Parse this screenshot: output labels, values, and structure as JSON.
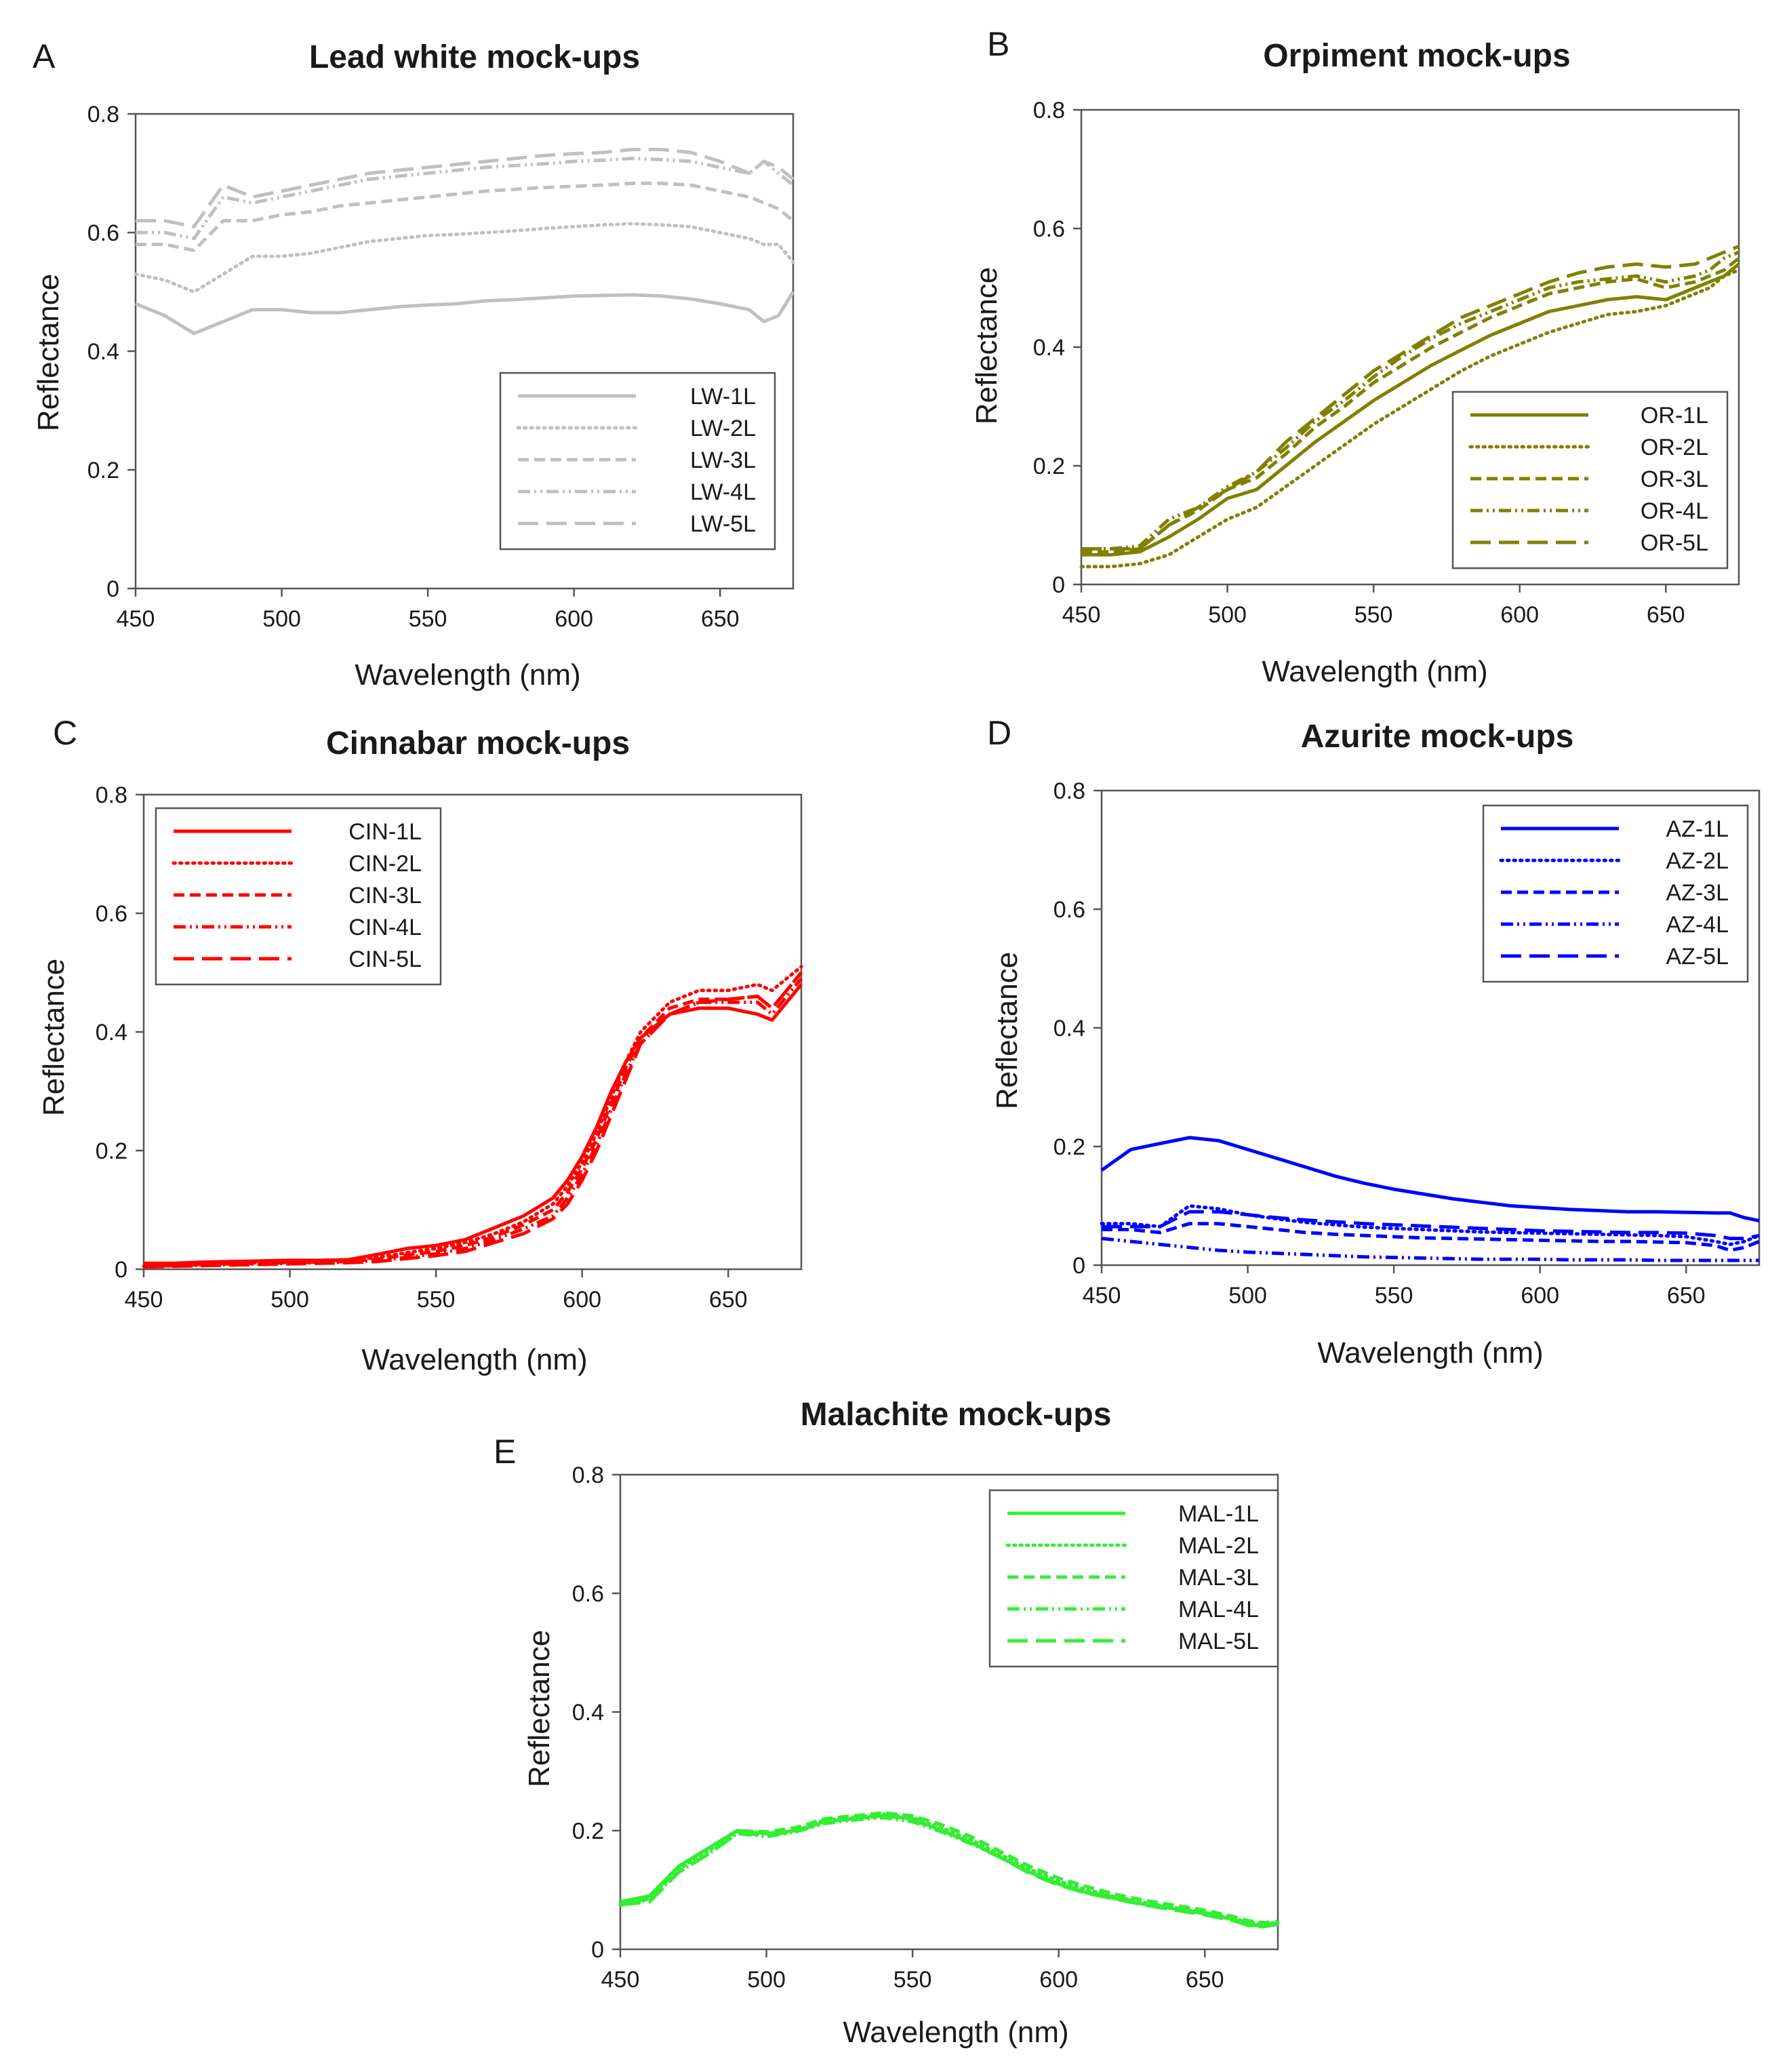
{
  "figure": {
    "background": "#ffffff",
    "axis_color": "#555555",
    "text_color": "#1a1a1a"
  },
  "chart_data": [
    {
      "panel": "A",
      "type": "line",
      "title": "Lead white mock-ups",
      "xlabel": "Wavelength (nm)",
      "ylabel": "Reflectance",
      "xlim": [
        450,
        675
      ],
      "ylim": [
        0,
        0.8
      ],
      "xticks": [
        450,
        500,
        550,
        600,
        650
      ],
      "yticks": [
        0,
        0.2,
        0.4,
        0.6,
        0.8
      ],
      "ytick_labels": [
        "0",
        "0.2",
        "0.4",
        "0.6",
        "0.8"
      ],
      "legend_position": "bottom-right",
      "color": "#c0c0c0",
      "x": [
        450,
        460,
        470,
        480,
        490,
        500,
        510,
        520,
        530,
        540,
        550,
        560,
        570,
        580,
        590,
        600,
        610,
        620,
        630,
        640,
        650,
        660,
        665,
        670,
        675
      ],
      "series": [
        {
          "name": "LW-1L",
          "style": "solid",
          "values": [
            0.48,
            0.46,
            0.43,
            0.45,
            0.47,
            0.47,
            0.465,
            0.465,
            0.47,
            0.475,
            0.478,
            0.48,
            0.485,
            0.487,
            0.49,
            0.493,
            0.494,
            0.495,
            0.493,
            0.488,
            0.48,
            0.47,
            0.45,
            0.46,
            0.5
          ]
        },
        {
          "name": "LW-2L",
          "style": "dotted",
          "values": [
            0.53,
            0.52,
            0.5,
            0.53,
            0.56,
            0.56,
            0.565,
            0.575,
            0.585,
            0.59,
            0.595,
            0.597,
            0.6,
            0.603,
            0.607,
            0.61,
            0.613,
            0.615,
            0.613,
            0.61,
            0.6,
            0.59,
            0.58,
            0.58,
            0.55
          ]
        },
        {
          "name": "LW-3L",
          "style": "dashed",
          "values": [
            0.58,
            0.58,
            0.57,
            0.62,
            0.62,
            0.63,
            0.635,
            0.645,
            0.65,
            0.655,
            0.66,
            0.665,
            0.67,
            0.673,
            0.676,
            0.678,
            0.68,
            0.683,
            0.683,
            0.68,
            0.67,
            0.66,
            0.65,
            0.64,
            0.62
          ]
        },
        {
          "name": "LW-4L",
          "style": "dashdotdot",
          "values": [
            0.6,
            0.6,
            0.59,
            0.66,
            0.65,
            0.66,
            0.67,
            0.68,
            0.69,
            0.695,
            0.7,
            0.705,
            0.71,
            0.713,
            0.716,
            0.72,
            0.722,
            0.725,
            0.723,
            0.72,
            0.71,
            0.7,
            0.72,
            0.7,
            0.68
          ]
        },
        {
          "name": "LW-5L",
          "style": "longdash",
          "values": [
            0.62,
            0.62,
            0.61,
            0.68,
            0.66,
            0.67,
            0.68,
            0.69,
            0.7,
            0.705,
            0.71,
            0.715,
            0.72,
            0.725,
            0.73,
            0.733,
            0.735,
            0.74,
            0.74,
            0.735,
            0.72,
            0.7,
            0.72,
            0.71,
            0.69
          ]
        }
      ]
    },
    {
      "panel": "B",
      "type": "line",
      "title": "Orpiment mock-ups",
      "xlabel": "Wavelength (nm)",
      "ylabel": "Reflectance",
      "xlim": [
        450,
        675
      ],
      "ylim": [
        0,
        0.8
      ],
      "xticks": [
        450,
        500,
        550,
        600,
        650
      ],
      "yticks": [
        0,
        0.2,
        0.4,
        0.6,
        0.8
      ],
      "ytick_labels": [
        "0",
        "0.2",
        "0.4",
        "0.6",
        "0.8"
      ],
      "legend_position": "bottom-right",
      "color": "#808000",
      "x": [
        450,
        460,
        470,
        480,
        490,
        500,
        510,
        520,
        530,
        540,
        550,
        560,
        570,
        580,
        590,
        600,
        610,
        620,
        630,
        640,
        650,
        660,
        665,
        670,
        675
      ],
      "series": [
        {
          "name": "OR-1L",
          "style": "solid",
          "values": [
            0.05,
            0.05,
            0.055,
            0.08,
            0.11,
            0.145,
            0.16,
            0.2,
            0.24,
            0.275,
            0.31,
            0.34,
            0.37,
            0.395,
            0.42,
            0.44,
            0.46,
            0.47,
            0.48,
            0.485,
            0.48,
            0.5,
            0.51,
            0.52,
            0.54
          ]
        },
        {
          "name": "OR-2L",
          "style": "dotted",
          "values": [
            0.03,
            0.03,
            0.035,
            0.05,
            0.08,
            0.11,
            0.13,
            0.165,
            0.2,
            0.235,
            0.27,
            0.3,
            0.33,
            0.36,
            0.385,
            0.405,
            0.425,
            0.44,
            0.455,
            0.46,
            0.47,
            0.49,
            0.5,
            0.52,
            0.53
          ]
        },
        {
          "name": "OR-3L",
          "style": "dashed",
          "values": [
            0.055,
            0.055,
            0.06,
            0.1,
            0.125,
            0.16,
            0.18,
            0.22,
            0.265,
            0.3,
            0.34,
            0.37,
            0.4,
            0.425,
            0.45,
            0.47,
            0.49,
            0.5,
            0.51,
            0.515,
            0.5,
            0.51,
            0.52,
            0.53,
            0.55
          ]
        },
        {
          "name": "OR-4L",
          "style": "dashdotdot",
          "values": [
            0.06,
            0.06,
            0.065,
            0.11,
            0.13,
            0.165,
            0.19,
            0.23,
            0.275,
            0.31,
            0.35,
            0.385,
            0.415,
            0.44,
            0.46,
            0.48,
            0.5,
            0.51,
            0.515,
            0.52,
            0.51,
            0.52,
            0.53,
            0.55,
            0.56
          ]
        },
        {
          "name": "OR-5L",
          "style": "longdash",
          "values": [
            0.06,
            0.06,
            0.06,
            0.1,
            0.13,
            0.16,
            0.19,
            0.24,
            0.28,
            0.32,
            0.36,
            0.39,
            0.42,
            0.45,
            0.47,
            0.49,
            0.51,
            0.525,
            0.535,
            0.54,
            0.535,
            0.54,
            0.55,
            0.56,
            0.57
          ]
        }
      ]
    },
    {
      "panel": "C",
      "type": "line",
      "title": "Cinnabar mock-ups",
      "xlabel": "Wavelength (nm)",
      "ylabel": "Reflectance",
      "xlim": [
        450,
        675
      ],
      "ylim": [
        0,
        0.8
      ],
      "xticks": [
        450,
        500,
        550,
        600,
        650
      ],
      "yticks": [
        0,
        0.2,
        0.4,
        0.6,
        0.8
      ],
      "ytick_labels": [
        "0",
        "0.2",
        "0.4",
        "0.6",
        "0.8"
      ],
      "legend_position": "top-left",
      "color": "#ff0000",
      "x": [
        450,
        460,
        470,
        480,
        490,
        500,
        510,
        520,
        530,
        540,
        550,
        560,
        570,
        580,
        590,
        595,
        600,
        605,
        610,
        615,
        620,
        630,
        640,
        650,
        660,
        665,
        670,
        675
      ],
      "series": [
        {
          "name": "CIN-1L",
          "style": "solid",
          "values": [
            0.01,
            0.01,
            0.012,
            0.013,
            0.014,
            0.015,
            0.015,
            0.016,
            0.025,
            0.035,
            0.04,
            0.05,
            0.07,
            0.09,
            0.12,
            0.15,
            0.19,
            0.24,
            0.3,
            0.35,
            0.39,
            0.43,
            0.44,
            0.44,
            0.43,
            0.42,
            0.45,
            0.48
          ]
        },
        {
          "name": "CIN-2L",
          "style": "dotted",
          "values": [
            0.005,
            0.006,
            0.008,
            0.01,
            0.011,
            0.012,
            0.013,
            0.015,
            0.02,
            0.028,
            0.035,
            0.045,
            0.06,
            0.08,
            0.11,
            0.14,
            0.18,
            0.23,
            0.29,
            0.35,
            0.4,
            0.45,
            0.47,
            0.47,
            0.48,
            0.47,
            0.49,
            0.51
          ]
        },
        {
          "name": "CIN-3L",
          "style": "dashed",
          "values": [
            0.005,
            0.006,
            0.008,
            0.009,
            0.01,
            0.011,
            0.012,
            0.013,
            0.017,
            0.024,
            0.03,
            0.04,
            0.055,
            0.075,
            0.1,
            0.13,
            0.17,
            0.22,
            0.28,
            0.34,
            0.39,
            0.44,
            0.455,
            0.455,
            0.46,
            0.44,
            0.47,
            0.5
          ]
        },
        {
          "name": "CIN-4L",
          "style": "dashdotdot",
          "values": [
            0.005,
            0.006,
            0.007,
            0.008,
            0.009,
            0.01,
            0.011,
            0.012,
            0.015,
            0.02,
            0.026,
            0.035,
            0.05,
            0.068,
            0.09,
            0.12,
            0.16,
            0.21,
            0.27,
            0.33,
            0.38,
            0.43,
            0.45,
            0.45,
            0.45,
            0.43,
            0.46,
            0.49
          ]
        },
        {
          "name": "CIN-5L",
          "style": "longdash",
          "values": [
            0.004,
            0.005,
            0.006,
            0.007,
            0.008,
            0.009,
            0.01,
            0.011,
            0.013,
            0.018,
            0.023,
            0.03,
            0.045,
            0.06,
            0.085,
            0.11,
            0.15,
            0.2,
            0.26,
            0.32,
            0.38,
            0.43,
            0.45,
            0.455,
            0.46,
            0.44,
            0.47,
            0.5
          ]
        }
      ]
    },
    {
      "panel": "D",
      "type": "line",
      "title": "Azurite mock-ups",
      "xlabel": "Wavelength (nm)",
      "ylabel": "Reflectance",
      "xlim": [
        450,
        675
      ],
      "ylim": [
        0,
        0.8
      ],
      "xticks": [
        450,
        500,
        550,
        600,
        650
      ],
      "yticks": [
        0,
        0.2,
        0.4,
        0.6,
        0.8
      ],
      "ytick_labels": [
        "0",
        "0.2",
        "0.4",
        "0.6",
        "0.8"
      ],
      "legend_position": "top-right",
      "color": "#0000ff",
      "x": [
        450,
        460,
        470,
        480,
        490,
        500,
        510,
        520,
        530,
        540,
        550,
        560,
        570,
        580,
        590,
        600,
        610,
        620,
        630,
        640,
        650,
        660,
        665,
        670,
        675
      ],
      "series": [
        {
          "name": "AZ-1L",
          "style": "solid",
          "values": [
            0.16,
            0.195,
            0.205,
            0.215,
            0.21,
            0.195,
            0.18,
            0.165,
            0.15,
            0.138,
            0.128,
            0.12,
            0.112,
            0.106,
            0.1,
            0.097,
            0.094,
            0.092,
            0.09,
            0.09,
            0.089,
            0.088,
            0.088,
            0.08,
            0.075
          ]
        },
        {
          "name": "AZ-2L",
          "style": "dotted",
          "values": [
            0.07,
            0.07,
            0.065,
            0.1,
            0.095,
            0.085,
            0.078,
            0.072,
            0.068,
            0.064,
            0.062,
            0.06,
            0.058,
            0.056,
            0.055,
            0.054,
            0.053,
            0.052,
            0.051,
            0.05,
            0.048,
            0.04,
            0.035,
            0.04,
            0.05
          ]
        },
        {
          "name": "AZ-3L",
          "style": "dashed",
          "values": [
            0.06,
            0.06,
            0.055,
            0.07,
            0.07,
            0.065,
            0.06,
            0.055,
            0.052,
            0.05,
            0.048,
            0.046,
            0.045,
            0.044,
            0.043,
            0.042,
            0.041,
            0.04,
            0.04,
            0.039,
            0.038,
            0.033,
            0.025,
            0.03,
            0.04
          ]
        },
        {
          "name": "AZ-4L",
          "style": "dashdotdot",
          "values": [
            0.045,
            0.04,
            0.035,
            0.03,
            0.025,
            0.022,
            0.02,
            0.018,
            0.016,
            0.014,
            0.013,
            0.012,
            0.011,
            0.01,
            0.01,
            0.01,
            0.009,
            0.009,
            0.009,
            0.008,
            0.008,
            0.008,
            0.008,
            0.008,
            0.008
          ]
        },
        {
          "name": "AZ-5L",
          "style": "longdash",
          "values": [
            0.065,
            0.065,
            0.065,
            0.09,
            0.09,
            0.085,
            0.08,
            0.076,
            0.073,
            0.07,
            0.068,
            0.066,
            0.064,
            0.062,
            0.06,
            0.058,
            0.057,
            0.056,
            0.055,
            0.055,
            0.054,
            0.05,
            0.045,
            0.045,
            0.05
          ]
        }
      ]
    },
    {
      "panel": "E",
      "type": "line",
      "title": "Malachite mock-ups",
      "xlabel": "Wavelength (nm)",
      "ylabel": "Reflectance",
      "xlim": [
        450,
        675
      ],
      "ylim": [
        0,
        0.8
      ],
      "xticks": [
        450,
        500,
        550,
        600,
        650
      ],
      "yticks": [
        0,
        0.2,
        0.4,
        0.6,
        0.8
      ],
      "ytick_labels": [
        "0",
        "0.2",
        "0.4",
        "0.6",
        "0.8"
      ],
      "legend_position": "top-right",
      "color": "#33ee33",
      "x": [
        450,
        460,
        470,
        480,
        490,
        500,
        510,
        520,
        530,
        540,
        550,
        560,
        570,
        580,
        590,
        600,
        610,
        620,
        630,
        640,
        650,
        660,
        665,
        670,
        675
      ],
      "series": [
        {
          "name": "MAL-1L",
          "style": "solid",
          "values": [
            0.08,
            0.09,
            0.14,
            0.17,
            0.2,
            0.195,
            0.2,
            0.215,
            0.22,
            0.225,
            0.22,
            0.2,
            0.18,
            0.155,
            0.13,
            0.11,
            0.095,
            0.085,
            0.075,
            0.068,
            0.06,
            0.05,
            0.04,
            0.04,
            0.045
          ]
        },
        {
          "name": "MAL-2L",
          "style": "dotted",
          "values": [
            0.075,
            0.085,
            0.135,
            0.165,
            0.198,
            0.195,
            0.2,
            0.218,
            0.222,
            0.228,
            0.222,
            0.205,
            0.185,
            0.16,
            0.135,
            0.115,
            0.1,
            0.088,
            0.078,
            0.07,
            0.062,
            0.052,
            0.045,
            0.043,
            0.045
          ]
        },
        {
          "name": "MAL-3L",
          "style": "dashed",
          "values": [
            0.08,
            0.085,
            0.14,
            0.17,
            0.2,
            0.198,
            0.205,
            0.22,
            0.225,
            0.23,
            0.225,
            0.21,
            0.19,
            0.165,
            0.14,
            0.12,
            0.105,
            0.092,
            0.082,
            0.074,
            0.066,
            0.055,
            0.048,
            0.045,
            0.047
          ]
        },
        {
          "name": "MAL-4L",
          "style": "dashdotdot",
          "values": [
            0.078,
            0.082,
            0.13,
            0.16,
            0.195,
            0.19,
            0.198,
            0.212,
            0.218,
            0.222,
            0.215,
            0.198,
            0.178,
            0.155,
            0.13,
            0.11,
            0.097,
            0.087,
            0.077,
            0.069,
            0.062,
            0.05,
            0.042,
            0.04,
            0.043
          ]
        },
        {
          "name": "MAL-5L",
          "style": "longdash",
          "values": [
            0.075,
            0.08,
            0.13,
            0.16,
            0.195,
            0.193,
            0.198,
            0.215,
            0.22,
            0.226,
            0.218,
            0.2,
            0.18,
            0.155,
            0.128,
            0.108,
            0.094,
            0.084,
            0.074,
            0.066,
            0.058,
            0.048,
            0.04,
            0.038,
            0.042
          ]
        }
      ]
    }
  ]
}
